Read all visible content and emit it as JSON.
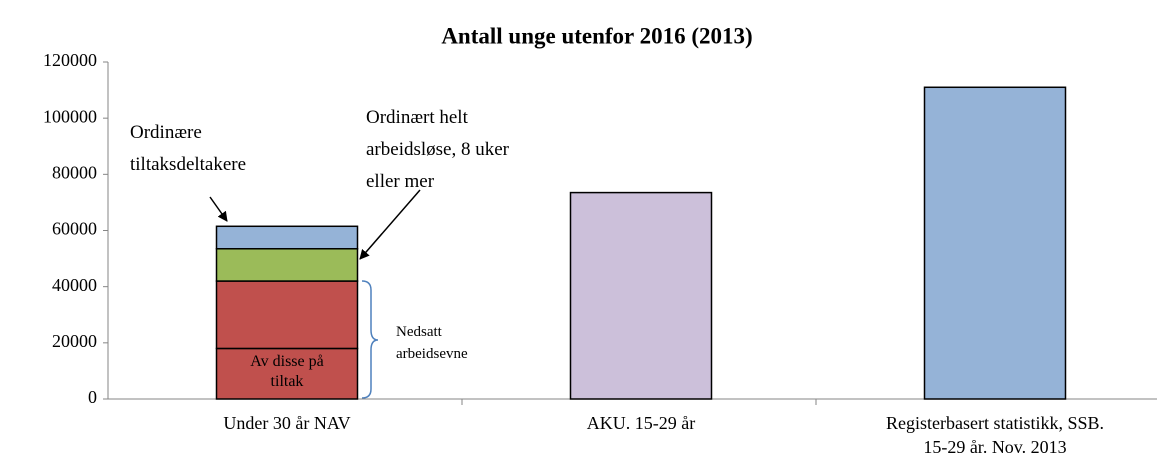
{
  "chart_data": {
    "type": "stacked_bar",
    "title": "Antall unge utenfor 2016 (2013)",
    "categories": [
      "Under 30 år NAV",
      "AKU. 15-29 år",
      "Registerbasert statistikk, SSB. 15-29 år. Nov. 2013"
    ],
    "series": [
      {
        "name": "Av disse på tiltak",
        "color": "#c0504d",
        "values": [
          18000,
          null,
          null
        ]
      },
      {
        "color": "#c0504d",
        "values": [
          24000,
          null,
          null
        ]
      },
      {
        "name": "Ordinært helt arbeidsløse, 8 uker eller mer",
        "color": "#9bbb59",
        "values": [
          11500,
          null,
          null
        ]
      },
      {
        "name": "Ordinære tiltaksdeltakere",
        "color": "#95b3d7",
        "values": [
          8000,
          null,
          null
        ]
      },
      {
        "color": "#ccc0da",
        "values": [
          null,
          73500,
          null
        ]
      },
      {
        "color": "#95b3d7",
        "values": [
          null,
          null,
          111000
        ]
      }
    ],
    "annotations": [
      "Nedsatt arbeidsevne"
    ],
    "ylim": [
      0,
      120000
    ],
    "yticks": [
      0,
      20000,
      40000,
      60000,
      80000,
      100000,
      120000
    ],
    "grid": false
  }
}
